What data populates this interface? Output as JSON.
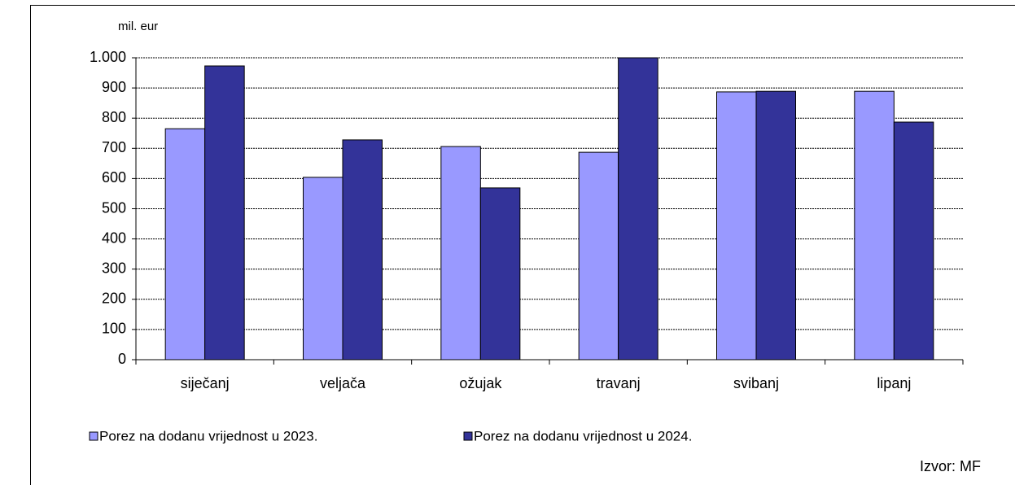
{
  "chart_data": {
    "type": "bar",
    "y_label": "mil. eur",
    "source": "Izvor: MF",
    "categories": [
      "siječanj",
      "veljača",
      "ožujak",
      "travanj",
      "svibanj",
      "lipanj"
    ],
    "series": [
      {
        "name": "Porez na dodanu vrijednost u 2023.",
        "color": "#9999ff",
        "values": [
          765,
          604,
          706,
          687,
          887,
          889
        ]
      },
      {
        "name": "Porez na dodanu vrijednost u 2024.",
        "color": "#333399",
        "values": [
          973,
          728,
          569,
          1000,
          889,
          787
        ]
      }
    ],
    "ylim": [
      0,
      1000
    ],
    "yticks": [
      0,
      100,
      200,
      300,
      400,
      500,
      600,
      700,
      800,
      900,
      {
        "value": 1000,
        "label": "1.000"
      }
    ],
    "grid": true
  }
}
